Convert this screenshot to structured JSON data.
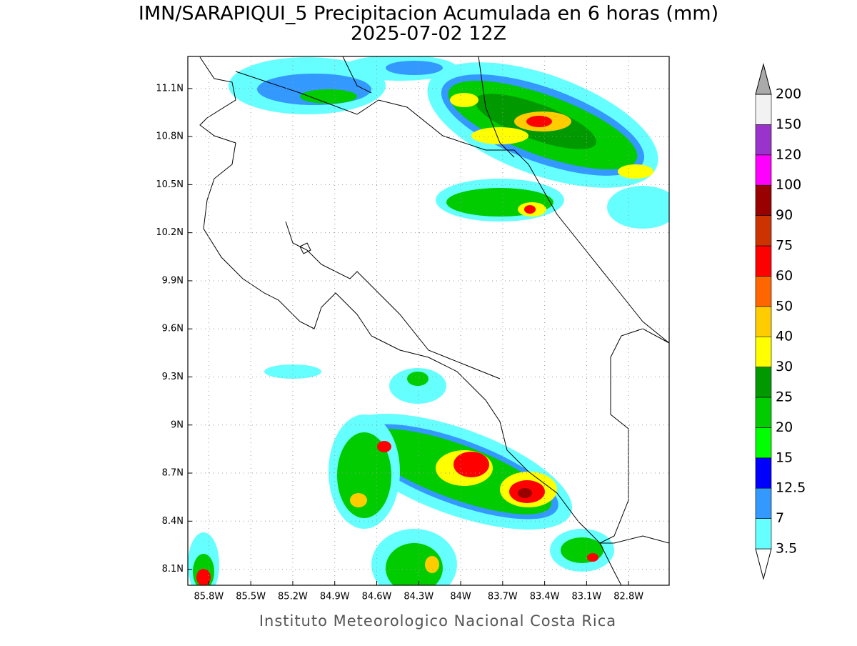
{
  "title": "IMN/SARAPIQUI_5 Precipitacion Acumulada en 6 horas (mm)",
  "subtitle": "2025-07-02 12Z",
  "map": {
    "lon_lim": [
      -85.95,
      -82.51
    ],
    "lat_lim": [
      8.0,
      11.3
    ],
    "x_ticks": [
      {
        "value": -85.8,
        "label": "85.8W"
      },
      {
        "value": -85.5,
        "label": "85.5W"
      },
      {
        "value": -85.2,
        "label": "85.2W"
      },
      {
        "value": -84.9,
        "label": "84.9W"
      },
      {
        "value": -84.6,
        "label": "84.6W"
      },
      {
        "value": -84.3,
        "label": "84.3W"
      },
      {
        "value": -84.0,
        "label": "84W"
      },
      {
        "value": -83.7,
        "label": "83.7W"
      },
      {
        "value": -83.4,
        "label": "83.4W"
      },
      {
        "value": -83.1,
        "label": "83.1W"
      },
      {
        "value": -82.8,
        "label": "82.8W"
      }
    ],
    "y_ticks": [
      {
        "value": 8.1,
        "label": "8.1N"
      },
      {
        "value": 8.4,
        "label": "8.4N"
      },
      {
        "value": 8.7,
        "label": "8.7N"
      },
      {
        "value": 9.0,
        "label": "9N"
      },
      {
        "value": 9.3,
        "label": "9.3N"
      },
      {
        "value": 9.6,
        "label": "9.6N"
      },
      {
        "value": 9.9,
        "label": "9.9N"
      },
      {
        "value": 10.2,
        "label": "10.2N"
      },
      {
        "value": 10.5,
        "label": "10.5N"
      },
      {
        "value": 10.8,
        "label": "10.8N"
      },
      {
        "value": 11.1,
        "label": "11.1N"
      }
    ]
  },
  "colorbar": {
    "levels": [
      3.5,
      7,
      12.5,
      15,
      20,
      25,
      30,
      40,
      50,
      60,
      75,
      90,
      100,
      120,
      150,
      200
    ],
    "colors": [
      "#ffffff",
      "#66ffff",
      "#3399ff",
      "#0000ff",
      "#00ff00",
      "#00cc00",
      "#009900",
      "#ffff00",
      "#ffcc00",
      "#ff6600",
      "#ff0000",
      "#cc3300",
      "#990000",
      "#ff00ff",
      "#9933cc",
      "#f2f2f2",
      "#aaaaaa"
    ]
  },
  "footer": "Instituto Meteorologico Nacional Costa Rica"
}
